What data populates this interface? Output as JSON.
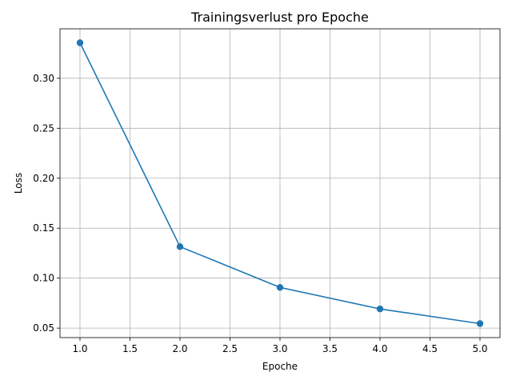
{
  "chart_data": {
    "type": "line",
    "title": "Trainingsverlust pro Epoche",
    "xlabel": "Epoche",
    "ylabel": "Loss",
    "x": [
      1.0,
      2.0,
      3.0,
      4.0,
      5.0
    ],
    "series": [
      {
        "values": [
          0.3355,
          0.1315,
          0.0907,
          0.0692,
          0.0545
        ],
        "color": "#1f77b4",
        "marker": "circle"
      }
    ],
    "xlim": [
      0.8,
      5.2
    ],
    "ylim": [
      0.0405,
      0.3495
    ],
    "xticks": [
      1.0,
      1.5,
      2.0,
      2.5,
      3.0,
      3.5,
      4.0,
      4.5,
      5.0
    ],
    "xtick_labels": [
      "1.0",
      "1.5",
      "2.0",
      "2.5",
      "3.0",
      "3.5",
      "4.0",
      "4.5",
      "5.0"
    ],
    "yticks": [
      0.05,
      0.1,
      0.15,
      0.2,
      0.25,
      0.3
    ],
    "ytick_labels": [
      "0.05",
      "0.10",
      "0.15",
      "0.20",
      "0.25",
      "0.30"
    ],
    "grid": true,
    "legend": false
  }
}
